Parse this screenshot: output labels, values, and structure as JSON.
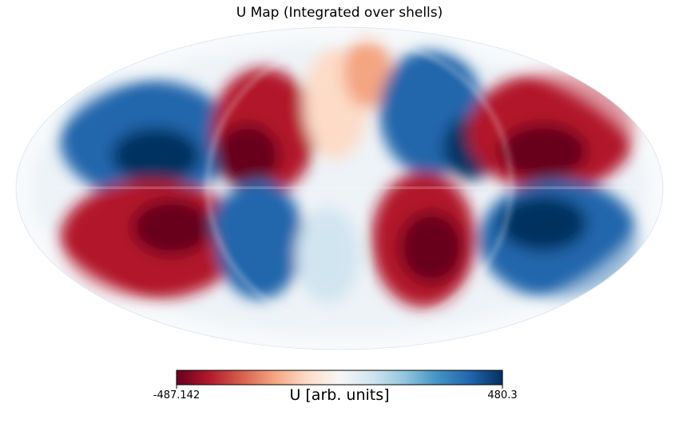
{
  "title": "U Map (Integrated over shells)",
  "colorbar": {
    "min_label": "-487.142",
    "max_label": "480.3",
    "label": "U [arb. units]",
    "colormap": [
      "#67001f",
      "#b2182b",
      "#d6604d",
      "#f4a582",
      "#fddbc7",
      "#f7f7f7",
      "#d1e5f0",
      "#92c5de",
      "#4393c3",
      "#2166ac",
      "#053061"
    ]
  },
  "map": {
    "projection": "mollweide",
    "background": "#ffffff"
  }
}
